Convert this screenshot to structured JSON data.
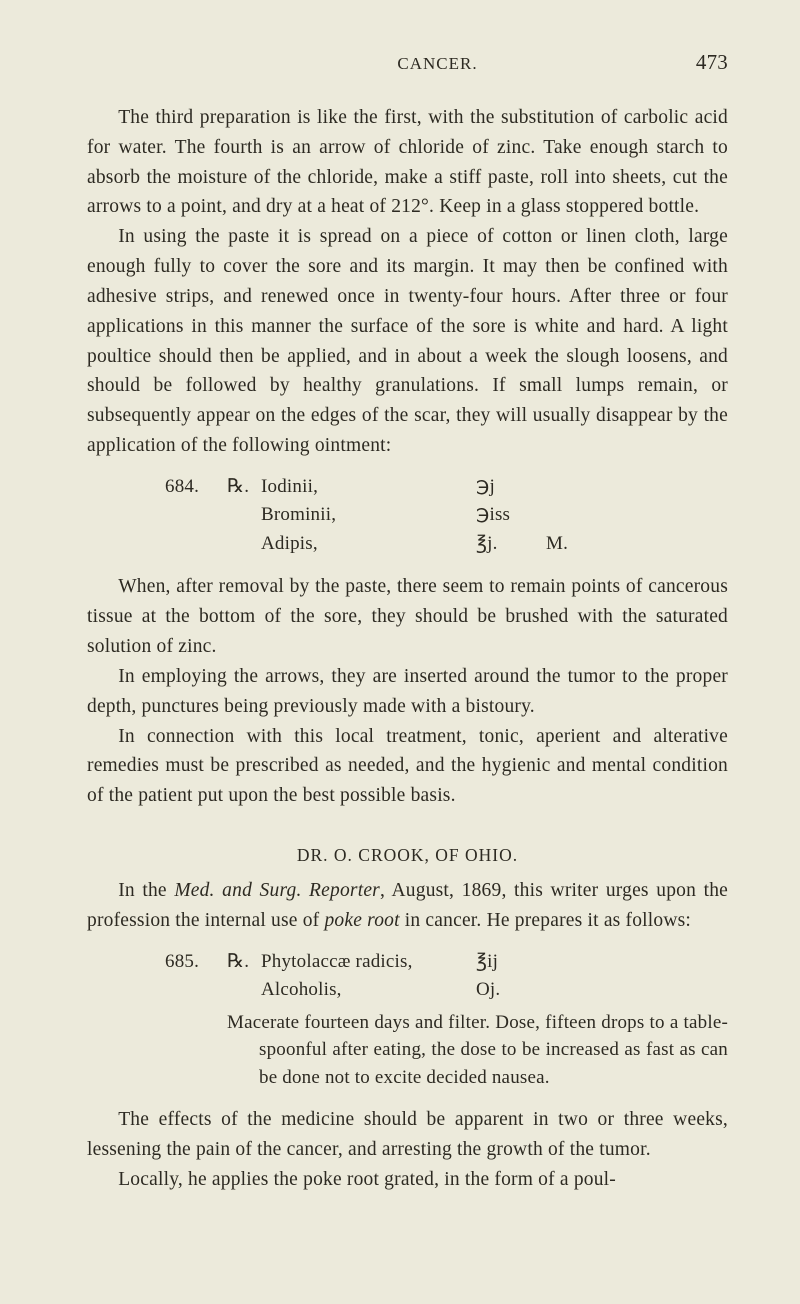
{
  "page": {
    "running_title": "CANCER.",
    "number": "473"
  },
  "para1": "The third preparation is like the first, with the substitution of carbolic acid for water. The fourth is an arrow of chloride of zinc. Take enough starch to absorb the moisture of the chloride, make a stiff paste, roll into sheets, cut the arrows to a point, and dry at a heat of 212°. Keep in a glass stoppered bottle.",
  "para2": "In using the paste it is spread on a piece of cotton or linen cloth, large enough fully to cover the sore and its margin. It may then be confined with adhesive strips, and renewed once in twenty-four hours. After three or four applications in this manner the surface of the sore is white and hard. A light poultice should then be applied, and in about a week the slough loosens, and should be followed by healthy granulations. If small lumps remain, or subsequently appear on the edges of the scar, they will usually disappear by the application of the following ointment:",
  "rx684": {
    "num": "684.",
    "sym": "℞.",
    "rows": [
      {
        "ing": "Iodinii,",
        "qty": "℈j",
        "sig": ""
      },
      {
        "ing": "Brominii,",
        "qty": "℈iss",
        "sig": ""
      },
      {
        "ing": "Adipis,",
        "qty": "℥j.",
        "sig": "M."
      }
    ]
  },
  "para3": "When, after removal by the paste, there seem to remain points of cancerous tissue at the bottom of the sore, they should be brushed with the saturated solution of zinc.",
  "para4": "In employing the arrows, they are inserted around the tumor to the proper depth, punctures being previously made with a bistoury.",
  "para5": "In connection with this local treatment, tonic, aperient and alterative remedies must be prescribed as needed, and the hygienic and mental condition of the patient put upon the best possible basis.",
  "section_head": "DR. O. CROOK, OF OHIO.",
  "para6_a": "In the ",
  "para6_ital": "Med. and Surg. Reporter",
  "para6_b": ", August, 1869, this writer urges upon the profession the internal use of ",
  "para6_ital2": "poke root",
  "para6_c": " in cancer. He prepares it as follows:",
  "rx685": {
    "num": "685.",
    "sym": "℞.",
    "rows": [
      {
        "ing": "Phytolaccæ radicis,",
        "qty": "℥ij",
        "sig": ""
      },
      {
        "ing": "Alcoholis,",
        "qty": "Oj.",
        "sig": ""
      }
    ],
    "note": "Macerate fourteen days and filter. Dose, fifteen drops to a table-spoonful after eating, the dose to be increased as fast as can be done not to excite decided nausea."
  },
  "para7": "The effects of the medicine should be apparent in two or three weeks, lessening the pain of the cancer, and arresting the growth of the tumor.",
  "para8": "Locally, he applies the poke root grated, in the form of a poul-"
}
